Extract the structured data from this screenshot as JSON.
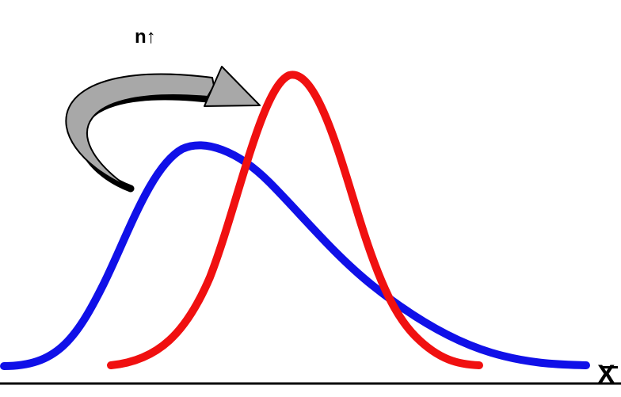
{
  "annotation": {
    "label": "n↑"
  },
  "axis": {
    "label": "X"
  },
  "colors": {
    "before_curve": "#1010e8",
    "after_curve": "#f01010",
    "arrow_fill": "#a8a8a8",
    "arrow_shadow": "#000000",
    "axis": "#000000"
  }
}
